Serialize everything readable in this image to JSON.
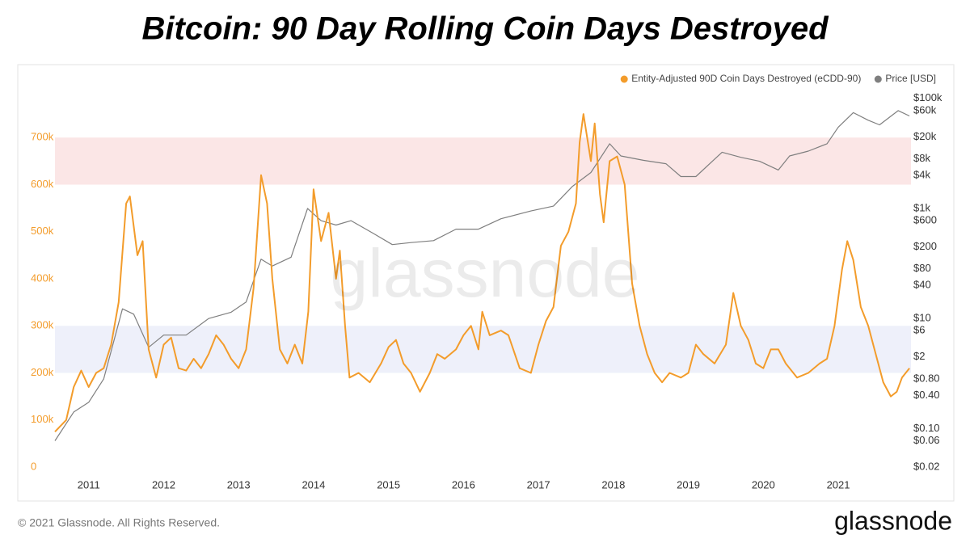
{
  "chart_data": {
    "type": "line",
    "title": "Bitcoin: 90 Day Rolling Coin Days Destroyed",
    "watermark": "glassnode",
    "footer": "© 2021 Glassnode. All Rights Reserved.",
    "logo": "glassnode",
    "legend": "top-right",
    "xlim": [
      2010.55,
      2021.97
    ],
    "xticks": [
      2011,
      2012,
      2013,
      2014,
      2015,
      2016,
      2017,
      2018,
      2019,
      2020,
      2021
    ],
    "ylim": [
      0,
      800000
    ],
    "yticks": [
      0,
      {
        "value": 100000,
        "label": "100k"
      },
      {
        "value": 200000,
        "label": "200k"
      },
      {
        "value": 300000,
        "label": "300k"
      },
      {
        "value": 400000,
        "label": "400k"
      },
      {
        "value": 500000,
        "label": "500k"
      },
      {
        "value": 600000,
        "label": "600k"
      },
      {
        "value": 700000,
        "label": "700k"
      }
    ],
    "y2log": true,
    "y2lim": [
      0.02,
      139000
    ],
    "y2ticks": [
      {
        "value": 0.02,
        "label": "$0.02"
      },
      {
        "value": 0.06,
        "label": "$0.06"
      },
      {
        "value": 0.1,
        "label": "$0.10"
      },
      {
        "value": 0.4,
        "label": "$0.40"
      },
      {
        "value": 0.8,
        "label": "$0.80"
      },
      {
        "value": 2,
        "label": "$2"
      },
      {
        "value": 6,
        "label": "$6"
      },
      {
        "value": 10,
        "label": "$10"
      },
      {
        "value": 40,
        "label": "$40"
      },
      {
        "value": 80,
        "label": "$80"
      },
      {
        "value": 200,
        "label": "$200"
      },
      {
        "value": 600,
        "label": "$600"
      },
      {
        "value": 1000,
        "label": "$1k"
      },
      {
        "value": 4000,
        "label": "$4k"
      },
      {
        "value": 8000,
        "label": "$8k"
      },
      {
        "value": 20000,
        "label": "$20k"
      },
      {
        "value": 60000,
        "label": "$60k"
      },
      {
        "value": 100000,
        "label": "$100k"
      }
    ],
    "bands": [
      {
        "range": [
          600000,
          700000
        ],
        "color": "#fbe6e6"
      },
      {
        "range": [
          200000,
          300000
        ],
        "color": "#eef0fa"
      }
    ],
    "series": [
      {
        "name": "Entity-Adjusted 90D Coin Days Destroyed (eCDD-90)",
        "color": "#f39c2b",
        "x": [
          2010.55,
          2010.7,
          2010.8,
          2010.9,
          2011.0,
          2011.1,
          2011.2,
          2011.3,
          2011.4,
          2011.5,
          2011.55,
          2011.65,
          2011.72,
          2011.8,
          2011.9,
          2012.0,
          2012.1,
          2012.2,
          2012.3,
          2012.4,
          2012.5,
          2012.6,
          2012.7,
          2012.8,
          2012.9,
          2013.0,
          2013.1,
          2013.2,
          2013.3,
          2013.38,
          2013.45,
          2013.55,
          2013.65,
          2013.75,
          2013.85,
          2013.93,
          2014.0,
          2014.1,
          2014.2,
          2014.3,
          2014.35,
          2014.42,
          2014.48,
          2014.6,
          2014.75,
          2014.9,
          2015.0,
          2015.1,
          2015.2,
          2015.3,
          2015.42,
          2015.55,
          2015.65,
          2015.75,
          2015.9,
          2016.0,
          2016.1,
          2016.2,
          2016.25,
          2016.35,
          2016.5,
          2016.6,
          2016.75,
          2016.9,
          2017.0,
          2017.1,
          2017.2,
          2017.3,
          2017.4,
          2017.5,
          2017.55,
          2017.6,
          2017.65,
          2017.7,
          2017.75,
          2017.82,
          2017.87,
          2017.95,
          2018.05,
          2018.15,
          2018.25,
          2018.35,
          2018.45,
          2018.55,
          2018.65,
          2018.75,
          2018.9,
          2019.0,
          2019.1,
          2019.2,
          2019.35,
          2019.5,
          2019.6,
          2019.7,
          2019.8,
          2019.9,
          2020.0,
          2020.1,
          2020.2,
          2020.3,
          2020.45,
          2020.6,
          2020.75,
          2020.85,
          2020.95,
          2021.05,
          2021.12,
          2021.2,
          2021.3,
          2021.4,
          2021.5,
          2021.6,
          2021.7,
          2021.78,
          2021.85,
          2021.95
        ],
        "values": [
          75000,
          100000,
          170000,
          205000,
          170000,
          200000,
          210000,
          260000,
          350000,
          560000,
          575000,
          450000,
          480000,
          250000,
          190000,
          260000,
          275000,
          210000,
          205000,
          230000,
          210000,
          240000,
          280000,
          260000,
          230000,
          210000,
          250000,
          380000,
          620000,
          560000,
          400000,
          250000,
          220000,
          260000,
          220000,
          330000,
          590000,
          480000,
          540000,
          400000,
          460000,
          300000,
          190000,
          200000,
          180000,
          220000,
          255000,
          270000,
          220000,
          200000,
          160000,
          200000,
          240000,
          230000,
          250000,
          280000,
          300000,
          250000,
          330000,
          280000,
          290000,
          280000,
          210000,
          200000,
          260000,
          310000,
          340000,
          470000,
          500000,
          560000,
          690000,
          750000,
          700000,
          650000,
          730000,
          580000,
          520000,
          650000,
          660000,
          600000,
          390000,
          300000,
          240000,
          200000,
          180000,
          200000,
          190000,
          200000,
          260000,
          240000,
          220000,
          260000,
          370000,
          300000,
          270000,
          220000,
          210000,
          250000,
          250000,
          220000,
          190000,
          200000,
          220000,
          230000,
          300000,
          420000,
          480000,
          440000,
          340000,
          300000,
          240000,
          180000,
          150000,
          160000,
          190000,
          210000
        ]
      },
      {
        "name": "Price [USD]",
        "color": "#7f7f7f",
        "axis": "y2",
        "x": [
          2010.55,
          2010.8,
          2011.0,
          2011.2,
          2011.45,
          2011.6,
          2011.8,
          2012.0,
          2012.3,
          2012.6,
          2012.9,
          2013.1,
          2013.3,
          2013.45,
          2013.7,
          2013.92,
          2014.1,
          2014.3,
          2014.5,
          2014.8,
          2015.05,
          2015.3,
          2015.6,
          2015.9,
          2016.2,
          2016.5,
          2016.9,
          2017.2,
          2017.45,
          2017.7,
          2017.95,
          2018.1,
          2018.4,
          2018.7,
          2018.9,
          2019.1,
          2019.45,
          2019.7,
          2019.95,
          2020.2,
          2020.35,
          2020.6,
          2020.85,
          2021.0,
          2021.2,
          2021.4,
          2021.55,
          2021.8,
          2021.95
        ],
        "values": [
          0.06,
          0.2,
          0.3,
          0.8,
          15,
          12,
          3,
          5,
          5,
          10,
          13,
          20,
          120,
          90,
          130,
          1000,
          600,
          500,
          600,
          350,
          220,
          240,
          260,
          420,
          420,
          650,
          900,
          1100,
          2500,
          4500,
          15000,
          9000,
          7500,
          6500,
          3800,
          3800,
          10500,
          8500,
          7200,
          5000,
          9000,
          11000,
          15000,
          30000,
          55000,
          40000,
          33000,
          60000,
          48000
        ]
      }
    ]
  }
}
